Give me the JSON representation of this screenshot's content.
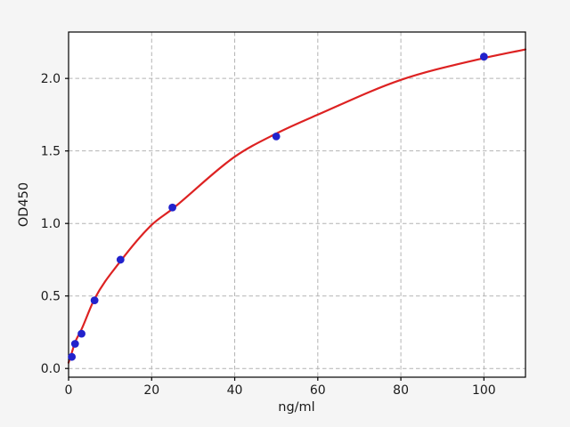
{
  "chart_data": {
    "type": "scatter",
    "title": "",
    "xlabel": "ng/ml",
    "ylabel": "OD450",
    "xlim": [
      0,
      110
    ],
    "ylim": [
      -0.06,
      2.32
    ],
    "grid": true,
    "grid_style": "dashed",
    "legend": "none",
    "x_ticks": [
      0,
      20,
      40,
      60,
      80,
      100
    ],
    "x_tick_labels": [
      "0",
      "20",
      "40",
      "60",
      "80",
      "100"
    ],
    "y_ticks": [
      0,
      0.5,
      1.0,
      1.5,
      2.0
    ],
    "y_tick_labels": [
      "0.0",
      "0.5",
      "1.0",
      "1.5",
      "2.0"
    ],
    "series": [
      {
        "name": "standard-points",
        "kind": "scatter",
        "marker": "circle",
        "color": "#2222cc",
        "x": [
          0.78,
          1.56,
          3.12,
          6.25,
          12.5,
          25,
          50,
          100
        ],
        "y": [
          0.08,
          0.17,
          0.24,
          0.47,
          0.75,
          1.11,
          1.6,
          2.15
        ]
      },
      {
        "name": "fit-curve",
        "kind": "line",
        "color": "#dd2222",
        "x": [
          0,
          0.78,
          1.56,
          3.12,
          6.25,
          12.5,
          20,
          25,
          40,
          50,
          60,
          80,
          100,
          110
        ],
        "y": [
          0.04,
          0.11,
          0.18,
          0.27,
          0.48,
          0.74,
          0.99,
          1.1,
          1.46,
          1.62,
          1.75,
          1.99,
          2.14,
          2.2
        ]
      }
    ],
    "colors": {
      "figure_background": "#f5f5f5",
      "plot_background": "#ffffff",
      "grid": "#b3b3b3",
      "spine": "#000000",
      "tick": "#000000",
      "text": "#1a1a1a",
      "point": "#2222cc",
      "curve": "#dd2222"
    }
  }
}
